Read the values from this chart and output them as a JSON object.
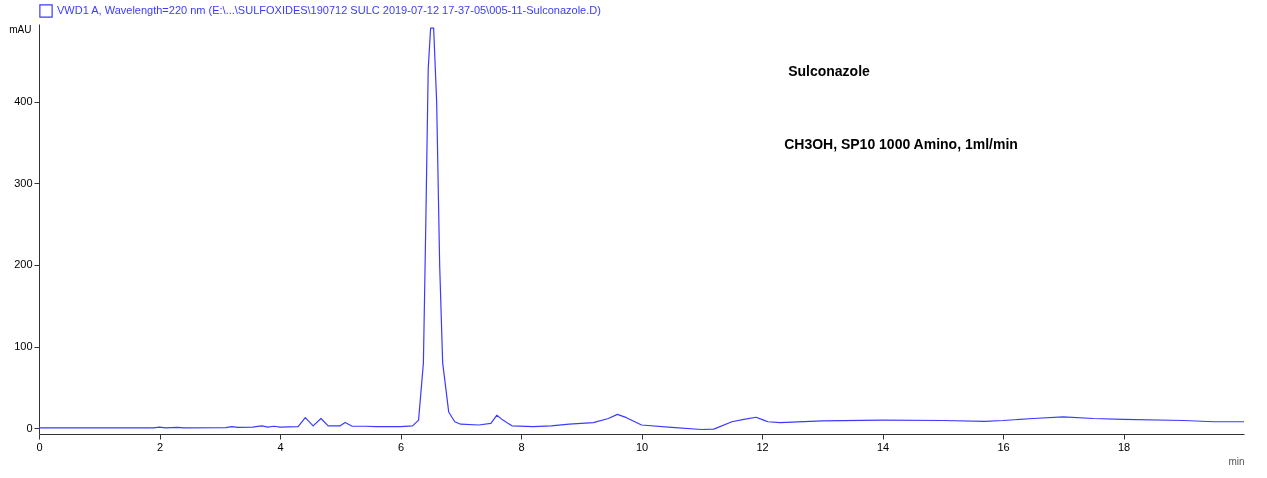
{
  "chart_data": {
    "type": "line",
    "xlabel": "min",
    "ylabel": "mAU",
    "annotations": [
      "Sulconazole",
      "CH3OH, SP10 1000 Amino, 1ml/min"
    ],
    "xlim": [
      0,
      20
    ],
    "xticks": [
      0,
      2,
      4,
      6,
      8,
      10,
      12,
      14,
      16,
      18
    ],
    "ylim": [
      -7,
      495
    ],
    "yticks": [
      0,
      100,
      200,
      300,
      400
    ],
    "grid": false,
    "legend": "top left",
    "marker": "none",
    "line_style": "solid",
    "series": [
      {
        "name": "VWD1 A, Wavelength=220 nm (E:\\...\\SULFOXIDES\\190712 SULC 2019-07-12 17-37-05\\005-11-Sulconazole.D)",
        "color": "#3b3bff",
        "x": [
          0,
          1.9,
          2.0,
          2.1,
          2.3,
          2.4,
          3.1,
          3.2,
          3.3,
          3.55,
          3.7,
          3.8,
          3.9,
          4.0,
          4.3,
          4.42,
          4.55,
          4.68,
          4.8,
          5.0,
          5.08,
          5.2,
          5.4,
          5.6,
          6.0,
          6.2,
          6.3,
          6.38,
          6.42,
          6.46,
          6.5,
          6.55,
          6.6,
          6.65,
          6.7,
          6.8,
          6.9,
          7.0,
          7.3,
          7.5,
          7.6,
          7.7,
          7.85,
          8.2,
          8.5,
          8.8,
          9.2,
          9.45,
          9.6,
          9.75,
          10.0,
          10.5,
          11.0,
          11.2,
          11.5,
          11.7,
          11.9,
          12.1,
          12.3,
          13,
          14,
          15,
          15.7,
          16,
          16.5,
          17,
          17.5,
          18,
          19,
          19.5,
          20
        ],
        "values": [
          0.5,
          0.5,
          1.5,
          0.5,
          1.2,
          0.5,
          0.8,
          2,
          1,
          1.5,
          3,
          1.5,
          2.5,
          1.5,
          2,
          13,
          3,
          12,
          3,
          3,
          7,
          2.5,
          2.5,
          2,
          2,
          3,
          10,
          80,
          250,
          440,
          490,
          490,
          400,
          200,
          80,
          20,
          8,
          5,
          4,
          6,
          16,
          10,
          3,
          2,
          3,
          5,
          7,
          12,
          17,
          13,
          4,
          1,
          -1.5,
          -1,
          8,
          11,
          13.5,
          8,
          7,
          9,
          10,
          9.5,
          8.5,
          9.5,
          12,
          14,
          12,
          11,
          9.5,
          8,
          8
        ]
      }
    ]
  }
}
